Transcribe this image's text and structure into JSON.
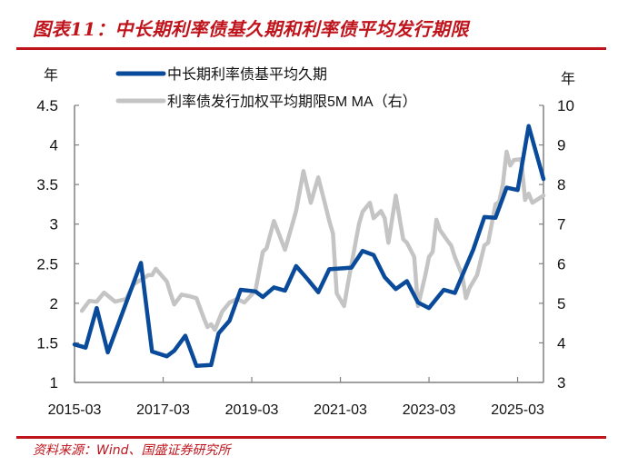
{
  "title": "图表11：中长期利率债基久期和利率债平均发行期限",
  "source": "资料来源：Wind、国盛证券研究所",
  "colors": {
    "accent": "#c0141c",
    "series_blue": "#0a4a9a",
    "series_gray": "#c4c4c4",
    "axis": "#808080"
  },
  "chart_data": {
    "type": "line",
    "title": "",
    "y_left_unit": "年",
    "y_right_unit": "年",
    "y_left_lim": [
      1,
      4.5
    ],
    "y_right_lim": [
      3,
      10
    ],
    "y_left_ticks": [
      "1",
      "1.5",
      "2",
      "2.5",
      "3",
      "3.5",
      "4",
      "4.5"
    ],
    "y_right_ticks": [
      "3",
      "4",
      "5",
      "6",
      "7",
      "8",
      "9",
      "10"
    ],
    "x_range": [
      "2015-03",
      "2025-10"
    ],
    "x_ticks": [
      "2015-03",
      "2017-03",
      "2019-03",
      "2021-03",
      "2023-03",
      "2025-03"
    ],
    "grid": false,
    "legend_position": "top",
    "series": [
      {
        "name": "中长期利率债基平均久期",
        "axis": "left",
        "color": "#0a4a9a",
        "x": [
          "2015-03",
          "2015-06",
          "2015-09",
          "2015-12",
          "2016-09",
          "2016-12",
          "2017-04",
          "2017-06",
          "2017-09",
          "2017-12",
          "2018-04",
          "2018-06",
          "2018-09",
          "2018-12",
          "2019-04",
          "2019-06",
          "2019-09",
          "2019-12",
          "2020-03",
          "2020-06",
          "2020-09",
          "2020-12",
          "2021-06",
          "2021-09",
          "2021-12",
          "2022-03",
          "2022-06",
          "2022-09",
          "2022-12",
          "2023-03",
          "2023-07",
          "2023-10",
          "2024-03",
          "2024-06",
          "2024-09",
          "2024-12",
          "2025-03",
          "2025-06",
          "2025-10"
        ],
        "y": [
          1.48,
          1.44,
          1.94,
          1.38,
          2.51,
          1.39,
          1.33,
          1.4,
          1.59,
          1.21,
          1.22,
          1.62,
          1.78,
          2.17,
          2.15,
          2.08,
          2.2,
          2.16,
          2.47,
          2.31,
          2.14,
          2.43,
          2.45,
          2.66,
          2.61,
          2.33,
          2.18,
          2.28,
          2.01,
          1.94,
          2.17,
          2.13,
          2.68,
          3.09,
          3.08,
          3.46,
          3.43,
          4.24,
          3.57
        ]
      },
      {
        "name": "利率债发行加权平均期限5M MA（右）",
        "axis": "right",
        "color": "#c4c4c4",
        "x": [
          "2015-05",
          "2015-07",
          "2015-09",
          "2015-11",
          "2016-02",
          "2016-05",
          "2016-07",
          "2016-11",
          "2016-12",
          "2017-01",
          "2017-04",
          "2017-05",
          "2017-06",
          "2017-08",
          "2017-10",
          "2017-12",
          "2018-02",
          "2018-03",
          "2018-04",
          "2018-05",
          "2018-07",
          "2018-09",
          "2018-11",
          "2019-01",
          "2019-04",
          "2019-06",
          "2019-07",
          "2019-09",
          "2019-12",
          "2020-03",
          "2020-05",
          "2020-07",
          "2020-09",
          "2020-11",
          "2020-12",
          "2021-01",
          "2021-02",
          "2021-04",
          "2021-05",
          "2021-08",
          "2021-09",
          "2021-11",
          "2021-12",
          "2022-02",
          "2022-03",
          "2022-04",
          "2022-06",
          "2022-08",
          "2022-09",
          "2022-11",
          "2022-12",
          "2023-02",
          "2023-03",
          "2023-04",
          "2023-05",
          "2023-06",
          "2023-08",
          "2023-09",
          "2023-10",
          "2023-12",
          "2024-01",
          "2024-02",
          "2024-04",
          "2024-06",
          "2024-07",
          "2024-09",
          "2024-10",
          "2024-11",
          "2024-12",
          "2025-01",
          "2025-02",
          "2025-04",
          "2025-05",
          "2025-06",
          "2025-07",
          "2025-10"
        ],
        "y": [
          4.81,
          5.06,
          5.04,
          5.27,
          5.04,
          5.11,
          5.48,
          5.71,
          5.71,
          5.87,
          5.55,
          5.25,
          4.97,
          5.22,
          5.18,
          5.13,
          4.63,
          4.4,
          4.47,
          4.33,
          4.79,
          5.02,
          5.11,
          5.02,
          5.32,
          6.3,
          6.39,
          7.08,
          6.35,
          7.33,
          8.34,
          7.54,
          8.18,
          7.45,
          7.08,
          6.76,
          5.25,
          4.93,
          5.48,
          6.99,
          7.31,
          7.54,
          7.15,
          7.33,
          7.15,
          6.53,
          7.72,
          6.62,
          6.53,
          6.17,
          4.93,
          5.71,
          6.17,
          6.3,
          7.11,
          6.85,
          6.58,
          6.46,
          6.17,
          5.71,
          5.13,
          5.39,
          5.71,
          6.46,
          6.53,
          7.5,
          7.56,
          8.0,
          8.83,
          8.48,
          8.62,
          8.64,
          7.61,
          7.77,
          7.54,
          7.72
        ]
      }
    ]
  }
}
